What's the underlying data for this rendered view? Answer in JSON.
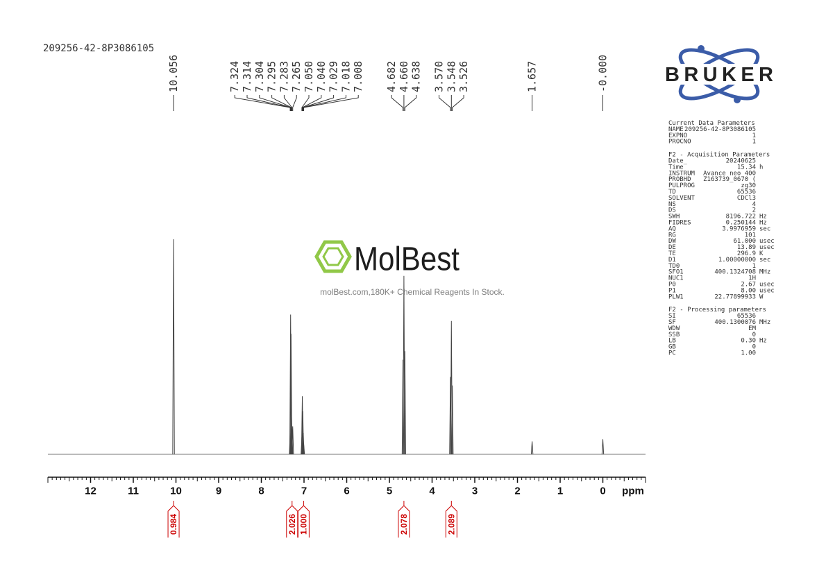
{
  "chart_data": {
    "type": "nmr",
    "title": "209256-42-8P3086105",
    "x_label": "ppm",
    "xlim": [
      13,
      -1
    ],
    "xticks": [
      12,
      11,
      10,
      9,
      8,
      7,
      6,
      5,
      4,
      3,
      2,
      1,
      0
    ],
    "ylim": [
      0,
      100
    ],
    "color": "#444444",
    "x": [
      10.056,
      7.324,
      7.314,
      7.304,
      7.295,
      7.283,
      7.265,
      7.05,
      7.04,
      7.029,
      7.018,
      7.008,
      4.682,
      4.66,
      4.638,
      3.57,
      3.548,
      3.526,
      1.657,
      0
    ],
    "values": [
      100,
      10,
      65,
      56,
      20,
      12,
      13,
      8,
      27,
      20,
      10,
      5,
      44,
      83,
      48,
      36,
      62,
      32,
      6,
      7
    ],
    "peak_labels": [
      10.056,
      7.324,
      7.314,
      7.304,
      7.295,
      7.283,
      7.265,
      {
        "value": 7.05,
        "label": "7.050"
      },
      {
        "value": 7.04,
        "label": "7.040"
      },
      7.029,
      7.018,
      7.008,
      4.682,
      {
        "value": 4.66,
        "label": "4.660"
      },
      4.638,
      {
        "value": 3.57,
        "label": "3.570"
      },
      3.548,
      3.526,
      1.657,
      {
        "value": 0,
        "label": "-0.000"
      }
    ],
    "integrals": {
      "x": [
        10.056,
        7.28,
        7.01,
        4.66,
        3.548
      ],
      "values": [
        0.984,
        2.026,
        1,
        2.078,
        2.089
      ],
      "value_labels": [
        "0.984",
        "2.026",
        "1.000",
        "2.078",
        "2.089"
      ],
      "color": "#cc0000"
    }
  },
  "watermark": {
    "brand": "MolBest",
    "tagline": "molBest.com,180K+ Chemical Reagents In Stock."
  },
  "logo": "BRUKER",
  "parameters": [
    {
      "title": "Current Data Parameters",
      "rows": [
        [
          "NAME",
          "209256-42-8P3086105"
        ],
        [
          "EXPNO",
          "1"
        ],
        [
          "PROCNO",
          "1"
        ]
      ]
    },
    {
      "title": "F2 - Acquisition Parameters",
      "rows": [
        [
          "Date_",
          "20240625"
        ],
        [
          "Time",
          "15.34",
          "h"
        ],
        [
          "INSTRUM",
          "Avance neo 400"
        ],
        [
          "PROBHD",
          "Z163739_0670 ("
        ],
        [
          "PULPROG",
          "zg30"
        ],
        [
          "TD",
          "65536"
        ],
        [
          "SOLVENT",
          "CDCl3"
        ],
        [
          "NS",
          "4"
        ],
        [
          "DS",
          "2"
        ],
        [
          "SWH",
          "8196.722",
          "Hz"
        ],
        [
          "FIDRES",
          "0.250144",
          "Hz"
        ],
        [
          "AQ",
          "3.9976959",
          "sec"
        ],
        [
          "RG",
          "101"
        ],
        [
          "DW",
          "61.000",
          "usec"
        ],
        [
          "DE",
          "13.89",
          "usec"
        ],
        [
          "TE",
          "296.9",
          "K"
        ],
        [
          "D1",
          "1.00000000",
          "sec"
        ],
        [
          "TD0",
          "1"
        ],
        [
          "SFO1",
          "400.1324708",
          "MHz"
        ],
        [
          "NUC1",
          "1H"
        ],
        [
          "P0",
          "2.67",
          "usec"
        ],
        [
          "P1",
          "8.00",
          "usec"
        ],
        [
          "PLW1",
          "22.77899933",
          "W"
        ]
      ]
    },
    {
      "title": "F2 - Processing parameters",
      "rows": [
        [
          "SI",
          "65536"
        ],
        [
          "SF",
          "400.1300076",
          "MHz"
        ],
        [
          "WDW",
          "EM"
        ],
        [
          "SSB",
          "0"
        ],
        [
          "LB",
          "0.30",
          "Hz"
        ],
        [
          "GB",
          "0"
        ],
        [
          "PC",
          "1.00"
        ]
      ]
    }
  ]
}
